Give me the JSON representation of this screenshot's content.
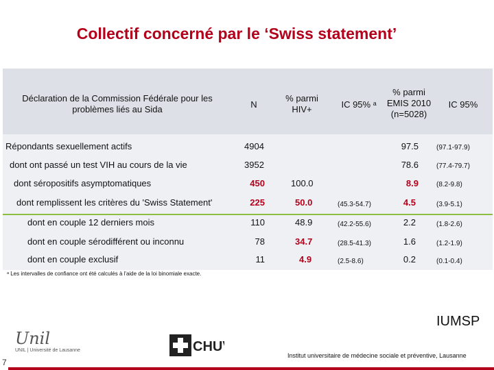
{
  "title": "Collectif concerné par le ‘Swiss statement’",
  "headers": {
    "declaration": "Déclaration de la Commission Fédérale pour les problèmes liés au Sida",
    "n": "N",
    "pct_hiv": "% parmi HIV+",
    "ic95a": "IC 95% ᵃ",
    "pct_emis": "% parmi EMIS 2010 (n=5028)",
    "ic95": "IC 95%"
  },
  "rows": [
    {
      "label": "Répondants sexuellement actifs",
      "n": "4904",
      "pct_hiv": "",
      "ic_hiv": "",
      "pct_emis": "97.5",
      "ic_emis": "(97.1-97.9)"
    },
    {
      "label": "dont ont passé un test VIH au cours de la vie",
      "n": "3952",
      "pct_hiv": "",
      "ic_hiv": "",
      "pct_emis": "78.6",
      "ic_emis": "(77.4-79.7)"
    },
    {
      "label": "dont séropositifs asymptomatiques",
      "n": "450",
      "pct_hiv": "100.0",
      "ic_hiv": "",
      "pct_emis": "8.9",
      "ic_emis": "(8.2-9.8)"
    },
    {
      "label": "dont remplissent les critères du 'Swiss Statement'",
      "n": "225",
      "pct_hiv": "50.0",
      "ic_hiv": "(45.3-54.7)",
      "pct_emis": "4.5",
      "ic_emis": "(3.9-5.1)"
    },
    {
      "label": "dont en couple 12 derniers mois",
      "n": "110",
      "pct_hiv": "48.9",
      "ic_hiv": "(42.2-55.6)",
      "pct_emis": "2.2",
      "ic_emis": "(1.8-2.6)"
    },
    {
      "label": "dont en couple sérodifférent ou inconnu",
      "n": "78",
      "pct_hiv": "34.7",
      "ic_hiv": "(28.5-41.3)",
      "pct_emis": "1.6",
      "ic_emis": "(1.2-1.9)"
    },
    {
      "label": "dont en couple exclusif",
      "n": "11",
      "pct_hiv": "4.9",
      "ic_hiv": "(2.5-8.6)",
      "pct_emis": "0.2",
      "ic_emis": "(0.1-0.4)"
    }
  ],
  "footnote": "ᵃ Les intervalles de confiance ont été calculés à l'aide de la loi binomiale exacte.",
  "logos": {
    "unil_mark": "Unil",
    "unil_sub": "UNIL | Université de Lausanne",
    "chuv": "CHUV"
  },
  "iumsp": "IUMSP",
  "institute": "Institut universitaire de médecine sociale et préventive, Lausanne",
  "page_number": "7",
  "colors": {
    "title": "#b3001b",
    "accent_line": "#8cbf3f",
    "header_bg": "#dde0e7",
    "body_bg": "#eef0f4",
    "bottom_bar": "#b3001b"
  }
}
